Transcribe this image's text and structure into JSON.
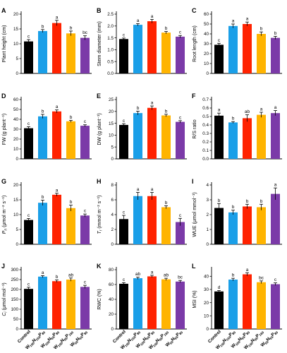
{
  "colors": {
    "Control": "#000000",
    "W100N150P80": "#1a9fe8",
    "W100N65P80": "#ff2200",
    "W100N65P160": "#ffb400",
    "W50N65P80": "#7b3aa8"
  },
  "x_categories": [
    {
      "base": "Control",
      "parts": []
    },
    {
      "base": "W",
      "parts": [
        "100",
        "N",
        "150",
        "P",
        "80"
      ]
    },
    {
      "base": "W",
      "parts": [
        "100",
        "N",
        "65",
        "P",
        "80"
      ]
    },
    {
      "base": "W",
      "parts": [
        "100",
        "N",
        "65",
        "P",
        "160"
      ]
    },
    {
      "base": "W",
      "parts": [
        "50",
        "N",
        "65",
        "P",
        "80"
      ]
    }
  ],
  "chart_data": [
    {
      "letter": "A",
      "type": "bar",
      "ylabel": "Plant height (cm)",
      "ylim": [
        0,
        20
      ],
      "yticks": [
        "0",
        "5",
        "10",
        "15",
        "20"
      ],
      "values": [
        10.8,
        14.3,
        17.0,
        13.5,
        12.0
      ],
      "errors": [
        0.6,
        0.5,
        0.9,
        0.8,
        0.7
      ],
      "labels": [
        "c",
        "b",
        "a",
        "b",
        "bc"
      ]
    },
    {
      "letter": "B",
      "type": "bar",
      "ylabel": "Stem diameter (mm)",
      "ylim": [
        0,
        2.5
      ],
      "yticks": [
        "0.0",
        "0.5",
        "1.0",
        "1.5",
        "2.0",
        "2.5"
      ],
      "values": [
        1.45,
        2.05,
        2.2,
        1.72,
        1.55
      ],
      "errors": [
        0.04,
        0.05,
        0.08,
        0.05,
        0.05
      ],
      "labels": [
        "c",
        "a",
        "a",
        "b",
        "c"
      ]
    },
    {
      "letter": "C",
      "type": "bar",
      "ylabel": "Root length (cm)",
      "ylim": [
        0,
        60
      ],
      "yticks": [
        "0",
        "10",
        "20",
        "30",
        "40",
        "50",
        "60"
      ],
      "values": [
        29,
        48,
        50,
        40,
        36
      ],
      "errors": [
        1.5,
        2.0,
        2.0,
        2.0,
        1.5
      ],
      "labels": [
        "c",
        "a",
        "a",
        "b",
        "b"
      ]
    },
    {
      "letter": "D",
      "type": "bar",
      "ylabel": "FW (g plant⁻¹)",
      "ylim": [
        0,
        60
      ],
      "yticks": [
        "0",
        "10",
        "20",
        "30",
        "40",
        "50",
        "60"
      ],
      "values": [
        31,
        43,
        48,
        38,
        33.5
      ],
      "errors": [
        1.5,
        2.0,
        1.5,
        1.0,
        1.0
      ],
      "labels": [
        "c",
        "b",
        "a",
        "b",
        "c"
      ]
    },
    {
      "letter": "E",
      "type": "bar",
      "ylabel": "DW (g plant⁻¹)",
      "ylim": [
        0,
        25
      ],
      "yticks": [
        "0",
        "5",
        "10",
        "15",
        "20",
        "25"
      ],
      "values": [
        14.3,
        19.3,
        21.5,
        18.3,
        15.6
      ],
      "errors": [
        0.5,
        0.8,
        0.8,
        0.5,
        0.5
      ],
      "labels": [
        "c",
        "b",
        "a",
        "b",
        "c"
      ]
    },
    {
      "letter": "F",
      "type": "bar",
      "ylabel": "R/S ratio",
      "ylim": [
        0,
        0.7
      ],
      "yticks": [
        "0.0",
        "0.1",
        "0.2",
        "0.3",
        "0.4",
        "0.5",
        "0.6",
        "0.7"
      ],
      "values": [
        0.51,
        0.43,
        0.48,
        0.52,
        0.54
      ],
      "errors": [
        0.03,
        0.01,
        0.04,
        0.03,
        0.03
      ],
      "labels": [
        "a",
        "b",
        "ab",
        "a",
        "a"
      ]
    },
    {
      "letter": "G",
      "type": "bar",
      "ylabel": "Pn (μmol m⁻² s⁻¹)",
      "ylabel_italic": "P",
      "ylabel_sub": "n",
      "ylabel_rest": " (μmol m⁻² s⁻¹)",
      "ylim": [
        0,
        20
      ],
      "yticks": [
        "0",
        "5",
        "10",
        "15",
        "20"
      ],
      "values": [
        8.2,
        14.0,
        16.7,
        12.2,
        9.7
      ],
      "errors": [
        0.5,
        0.9,
        0.5,
        1.0,
        0.5
      ],
      "labels": [
        "c",
        "b",
        "a",
        "b",
        "c"
      ]
    },
    {
      "letter": "H",
      "type": "bar",
      "ylabel": "Tr (mmol m⁻² s⁻¹)",
      "ylabel_italic": "T",
      "ylabel_sub": "r",
      "ylabel_rest": " (mmol m⁻² s⁻¹)",
      "ylim": [
        0,
        8
      ],
      "yticks": [
        "0",
        "2",
        "4",
        "6",
        "8"
      ],
      "values": [
        3.4,
        6.5,
        6.5,
        5.0,
        3.0
      ],
      "errors": [
        0.5,
        0.5,
        0.5,
        0.2,
        0.5
      ],
      "labels": [
        "c",
        "a",
        "a",
        "b",
        "c"
      ]
    },
    {
      "letter": "I",
      "type": "bar",
      "ylabel": "WUE (μmol mmol⁻¹)",
      "ylim": [
        0,
        4
      ],
      "yticks": [
        "0",
        "1",
        "2",
        "3",
        "4"
      ],
      "values": [
        2.45,
        2.15,
        2.55,
        2.5,
        3.4
      ],
      "errors": [
        0.3,
        0.15,
        0.15,
        0.2,
        0.4
      ],
      "labels": [
        "b",
        "b",
        "b",
        "b",
        "a"
      ]
    },
    {
      "letter": "J",
      "type": "bar",
      "ylabel": "Ci (μmol mol⁻¹)",
      "ylabel_italic": "C",
      "ylabel_sub": "i",
      "ylabel_rest": " (μmol mol⁻¹)",
      "ylim": [
        0,
        300
      ],
      "yticks": [
        "0",
        "50",
        "100",
        "150",
        "200",
        "250",
        "300"
      ],
      "values": [
        203,
        265,
        242,
        250,
        213
      ],
      "errors": [
        8,
        5,
        6,
        8,
        8
      ],
      "labels": [
        "c",
        "a",
        "b",
        "ab",
        "c"
      ]
    },
    {
      "letter": "K",
      "type": "bar",
      "ylabel": "RWC (%)",
      "ylim": [
        0,
        80
      ],
      "yticks": [
        "0",
        "20",
        "40",
        "60",
        "80"
      ],
      "values": [
        61,
        68.5,
        71,
        67,
        64
      ],
      "errors": [
        1.5,
        1.5,
        1.5,
        1.5,
        1.5
      ],
      "labels": [
        "c",
        "ab",
        "a",
        "ab",
        "bc"
      ]
    },
    {
      "letter": "L",
      "type": "bar",
      "ylabel": "MSI (%)",
      "ylim": [
        0,
        45
      ],
      "yticks": [
        "0",
        "10",
        "20",
        "30",
        "40"
      ],
      "values": [
        28.5,
        37.5,
        41.5,
        35.5,
        34
      ],
      "errors": [
        0.7,
        1.0,
        1.2,
        1.0,
        1.0
      ],
      "labels": [
        "d",
        "b",
        "a",
        "bc",
        "c"
      ]
    }
  ]
}
